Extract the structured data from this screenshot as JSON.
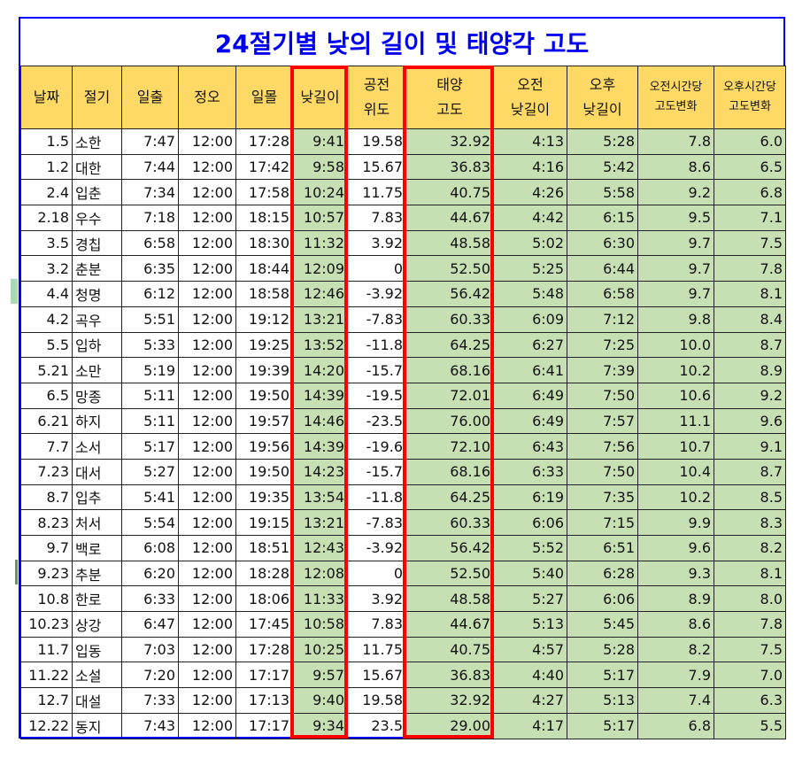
{
  "title": "24절기별 낮의 길이 및 태양각 고도",
  "colors": {
    "header_bg": "#ffd966",
    "highlight_bg": "#c6e0b4",
    "title_color": "#0000ee",
    "outline": "#0000ff",
    "emphasis_box": "#ff0000"
  },
  "headers": [
    [
      "날짜"
    ],
    [
      "절기"
    ],
    [
      "일출"
    ],
    [
      "정오"
    ],
    [
      "일몰"
    ],
    [
      "낮길이"
    ],
    [
      "공전",
      "위도"
    ],
    [
      "태양",
      "고도"
    ],
    [
      "오전",
      "낮길이"
    ],
    [
      "오후",
      "낮길이"
    ],
    [
      "오전시간당",
      "고도변화"
    ],
    [
      "오후시간당",
      "고도변화"
    ]
  ],
  "rows": [
    [
      "1.5",
      "소한",
      "7:47",
      "12:00",
      "17:28",
      "9:41",
      "19.58",
      "32.92",
      "4:13",
      "5:28",
      "7.8",
      "6.0"
    ],
    [
      "1.2",
      "대한",
      "7:44",
      "12:00",
      "17:42",
      "9:58",
      "15.67",
      "36.83",
      "4:16",
      "5:42",
      "8.6",
      "6.5"
    ],
    [
      "2.4",
      "입춘",
      "7:34",
      "12:00",
      "17:58",
      "10:24",
      "11.75",
      "40.75",
      "4:26",
      "5:58",
      "9.2",
      "6.8"
    ],
    [
      "2.18",
      "우수",
      "7:18",
      "12:00",
      "18:15",
      "10:57",
      "7.83",
      "44.67",
      "4:42",
      "6:15",
      "9.5",
      "7.1"
    ],
    [
      "3.5",
      "경칩",
      "6:58",
      "12:00",
      "18:30",
      "11:32",
      "3.92",
      "48.58",
      "5:02",
      "6:30",
      "9.7",
      "7.5"
    ],
    [
      "3.2",
      "춘분",
      "6:35",
      "12:00",
      "18:44",
      "12:09",
      "0",
      "52.50",
      "5:25",
      "6:44",
      "9.7",
      "7.8"
    ],
    [
      "4.4",
      "청명",
      "6:12",
      "12:00",
      "18:58",
      "12:46",
      "-3.92",
      "56.42",
      "5:48",
      "6:58",
      "9.7",
      "8.1"
    ],
    [
      "4.2",
      "곡우",
      "5:51",
      "12:00",
      "19:12",
      "13:21",
      "-7.83",
      "60.33",
      "6:09",
      "7:12",
      "9.8",
      "8.4"
    ],
    [
      "5.5",
      "입하",
      "5:33",
      "12:00",
      "19:25",
      "13:52",
      "-11.8",
      "64.25",
      "6:27",
      "7:25",
      "10.0",
      "8.7"
    ],
    [
      "5.21",
      "소만",
      "5:19",
      "12:00",
      "19:39",
      "14:20",
      "-15.7",
      "68.16",
      "6:41",
      "7:39",
      "10.2",
      "8.9"
    ],
    [
      "6.5",
      "망종",
      "5:11",
      "12:00",
      "19:50",
      "14:39",
      "-19.5",
      "72.01",
      "6:49",
      "7:50",
      "10.6",
      "9.2"
    ],
    [
      "6.21",
      "하지",
      "5:11",
      "12:00",
      "19:57",
      "14:46",
      "-23.5",
      "76.00",
      "6:49",
      "7:57",
      "11.1",
      "9.6"
    ],
    [
      "7.7",
      "소서",
      "5:17",
      "12:00",
      "19:56",
      "14:39",
      "-19.6",
      "72.10",
      "6:43",
      "7:56",
      "10.7",
      "9.1"
    ],
    [
      "7.23",
      "대서",
      "5:27",
      "12:00",
      "19:50",
      "14:23",
      "-15.7",
      "68.16",
      "6:33",
      "7:50",
      "10.4",
      "8.7"
    ],
    [
      "8.7",
      "입추",
      "5:41",
      "12:00",
      "19:35",
      "13:54",
      "-11.8",
      "64.25",
      "6:19",
      "7:35",
      "10.2",
      "8.5"
    ],
    [
      "8.23",
      "처서",
      "5:54",
      "12:00",
      "19:15",
      "13:21",
      "-7.83",
      "60.33",
      "6:06",
      "7:15",
      "9.9",
      "8.3"
    ],
    [
      "9.7",
      "백로",
      "6:08",
      "12:00",
      "18:51",
      "12:43",
      "-3.92",
      "56.42",
      "5:52",
      "6:51",
      "9.6",
      "8.2"
    ],
    [
      "9.23",
      "추분",
      "6:20",
      "12:00",
      "18:28",
      "12:08",
      "0",
      "52.50",
      "5:40",
      "6:28",
      "9.3",
      "8.1"
    ],
    [
      "10.8",
      "한로",
      "6:33",
      "12:00",
      "18:06",
      "11:33",
      "3.92",
      "48.58",
      "5:27",
      "6:06",
      "8.9",
      "8.0"
    ],
    [
      "10.23",
      "상강",
      "6:47",
      "12:00",
      "17:45",
      "10:58",
      "7.83",
      "44.67",
      "5:13",
      "5:45",
      "8.6",
      "7.8"
    ],
    [
      "11.7",
      "입동",
      "7:03",
      "12:00",
      "17:28",
      "10:25",
      "11.75",
      "40.75",
      "4:57",
      "5:28",
      "8.2",
      "7.5"
    ],
    [
      "11.22",
      "소설",
      "7:20",
      "12:00",
      "17:17",
      "9:57",
      "15.67",
      "36.83",
      "4:40",
      "5:17",
      "7.9",
      "7.0"
    ],
    [
      "12.7",
      "대설",
      "7:33",
      "12:00",
      "17:13",
      "9:40",
      "19.58",
      "32.92",
      "4:27",
      "5:13",
      "7.4",
      "6.3"
    ],
    [
      "12.22",
      "동지",
      "7:43",
      "12:00",
      "17:17",
      "9:34",
      "23.5",
      "29.00",
      "4:17",
      "5:17",
      "6.8",
      "5.5"
    ]
  ]
}
